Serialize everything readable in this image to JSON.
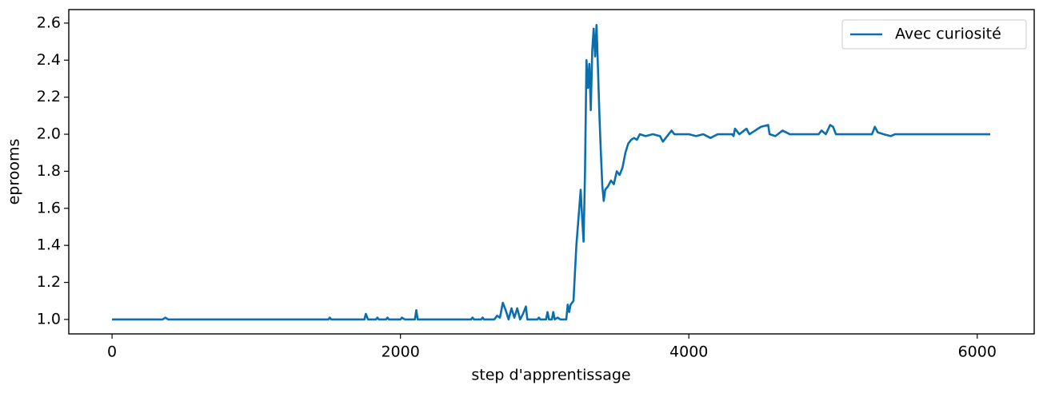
{
  "chart_data": {
    "type": "line",
    "xlabel": "step d'apprentissage",
    "ylabel": "eprooms",
    "x": [
      0,
      350,
      370,
      390,
      1500,
      1510,
      1520,
      1750,
      1760,
      1775,
      1830,
      1840,
      1850,
      1900,
      1910,
      1920,
      2000,
      2010,
      2030,
      2100,
      2110,
      2120,
      2490,
      2500,
      2510,
      2560,
      2570,
      2580,
      2650,
      2670,
      2690,
      2710,
      2730,
      2750,
      2770,
      2790,
      2810,
      2830,
      2850,
      2870,
      2880,
      2950,
      2960,
      2970,
      3010,
      3020,
      3030,
      3050,
      3060,
      3070,
      3090,
      3110,
      3150,
      3160,
      3170,
      3180,
      3200,
      3220,
      3240,
      3250,
      3260,
      3270,
      3280,
      3290,
      3300,
      3310,
      3320,
      3330,
      3340,
      3350,
      3360,
      3370,
      3380,
      3390,
      3400,
      3410,
      3420,
      3440,
      3460,
      3480,
      3500,
      3520,
      3540,
      3560,
      3580,
      3600,
      3620,
      3640,
      3660,
      3700,
      3750,
      3800,
      3820,
      3840,
      3860,
      3880,
      3900,
      4000,
      4050,
      4100,
      4150,
      4200,
      4300,
      4310,
      4320,
      4350,
      4400,
      4420,
      4500,
      4550,
      4560,
      4600,
      4650,
      4700,
      4900,
      4920,
      4950,
      4980,
      5000,
      5020,
      5200,
      5270,
      5290,
      5310,
      5350,
      5400,
      5430,
      6090
    ],
    "series": [
      {
        "name": "Avec curiosité",
        "color": "#0a6fad",
        "values": [
          1.0,
          1.0,
          1.01,
          1.0,
          1.0,
          1.01,
          1.0,
          1.0,
          1.03,
          1.0,
          1.0,
          1.01,
          1.0,
          1.0,
          1.01,
          1.0,
          1.0,
          1.01,
          1.0,
          1.0,
          1.05,
          1.0,
          1.0,
          1.01,
          1.0,
          1.0,
          1.01,
          1.0,
          1.0,
          1.02,
          1.01,
          1.09,
          1.05,
          1.0,
          1.06,
          1.01,
          1.06,
          1.0,
          1.03,
          1.07,
          1.0,
          1.0,
          1.01,
          1.0,
          1.0,
          1.04,
          1.0,
          1.0,
          1.04,
          1.0,
          1.01,
          1.0,
          1.0,
          1.08,
          1.04,
          1.08,
          1.1,
          1.4,
          1.6,
          1.7,
          1.55,
          1.42,
          1.8,
          2.4,
          2.25,
          2.38,
          2.13,
          2.45,
          2.57,
          2.42,
          2.59,
          2.35,
          2.1,
          1.9,
          1.72,
          1.64,
          1.7,
          1.72,
          1.75,
          1.73,
          1.8,
          1.78,
          1.82,
          1.9,
          1.95,
          1.97,
          1.98,
          1.97,
          2.0,
          1.99,
          2.0,
          1.99,
          1.96,
          1.98,
          2.0,
          2.02,
          2.0,
          2.0,
          1.99,
          2.0,
          1.98,
          2.0,
          2.0,
          1.99,
          2.03,
          2.0,
          2.03,
          2.0,
          2.04,
          2.05,
          2.0,
          1.99,
          2.02,
          2.0,
          2.0,
          2.02,
          2.0,
          2.05,
          2.04,
          2.0,
          2.0,
          2.0,
          2.04,
          2.01,
          2.0,
          1.99,
          2.0,
          2.0
        ]
      }
    ],
    "xlim": [
      -300,
      6395
    ],
    "xticks": [
      0,
      2000,
      4000,
      6000
    ],
    "ylim": [
      0.922,
      2.673
    ],
    "yticks": [
      {
        "value": 1,
        "label": "1.0"
      },
      1.2,
      1.4,
      1.6,
      1.8,
      {
        "value": 2,
        "label": "2.0"
      },
      2.2,
      2.4,
      2.6
    ],
    "legend": "upper right"
  }
}
